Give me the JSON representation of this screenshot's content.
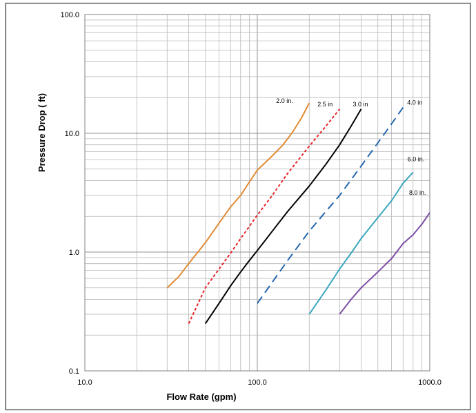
{
  "chart_data": {
    "type": "line",
    "title": "",
    "xlabel": "Flow Rate (gpm)",
    "ylabel": "Pressure Drop ( ft)",
    "xscale": "log",
    "yscale": "log",
    "xlim": [
      10,
      1000
    ],
    "ylim": [
      0.1,
      100
    ],
    "x_tick_labels": [
      "10.0",
      "100.0",
      "1000.0"
    ],
    "y_tick_labels": [
      "0.1",
      "1.0",
      "10.0",
      "100.0"
    ],
    "grid": true,
    "series": [
      {
        "name": "2.0 in.",
        "color": "#E08A34",
        "dash": "solid",
        "points": [
          [
            30,
            0.5
          ],
          [
            35,
            0.62
          ],
          [
            40,
            0.8
          ],
          [
            50,
            1.2
          ],
          [
            60,
            1.75
          ],
          [
            70,
            2.4
          ],
          [
            80,
            3.0
          ],
          [
            90,
            3.9
          ],
          [
            100,
            4.9
          ],
          [
            120,
            6.3
          ],
          [
            140,
            7.9
          ],
          [
            160,
            10.2
          ],
          [
            180,
            13.4
          ],
          [
            200,
            18.0
          ]
        ]
      },
      {
        "name": "2.5 in",
        "color": "#E8262A",
        "dash": "short",
        "points": [
          [
            40,
            0.25
          ],
          [
            50,
            0.5
          ],
          [
            60,
            0.72
          ],
          [
            70,
            0.98
          ],
          [
            80,
            1.3
          ],
          [
            90,
            1.65
          ],
          [
            100,
            2.05
          ],
          [
            120,
            2.9
          ],
          [
            150,
            4.6
          ],
          [
            200,
            7.8
          ],
          [
            250,
            11.5
          ],
          [
            300,
            16.0
          ]
        ]
      },
      {
        "name": "3.0 in",
        "color": "#000000",
        "dash": "solid",
        "points": [
          [
            50,
            0.25
          ],
          [
            60,
            0.37
          ],
          [
            70,
            0.52
          ],
          [
            80,
            0.68
          ],
          [
            90,
            0.85
          ],
          [
            100,
            1.03
          ],
          [
            120,
            1.45
          ],
          [
            150,
            2.2
          ],
          [
            200,
            3.6
          ],
          [
            250,
            5.5
          ],
          [
            300,
            8.0
          ],
          [
            350,
            11.5
          ],
          [
            400,
            16.0
          ]
        ]
      },
      {
        "name": "4.0 in",
        "color": "#2467AE",
        "dash": "long",
        "points": [
          [
            100,
            0.37
          ],
          [
            150,
            0.85
          ],
          [
            200,
            1.5
          ],
          [
            250,
            2.2
          ],
          [
            300,
            3.0
          ],
          [
            400,
            5.3
          ],
          [
            500,
            8.3
          ],
          [
            600,
            12.0
          ],
          [
            700,
            16.5
          ]
        ]
      },
      {
        "name": "6.0 in.",
        "color": "#3AA6BD",
        "dash": "solid",
        "points": [
          [
            200,
            0.3
          ],
          [
            250,
            0.48
          ],
          [
            300,
            0.72
          ],
          [
            350,
            0.98
          ],
          [
            400,
            1.3
          ],
          [
            500,
            1.95
          ],
          [
            600,
            2.7
          ],
          [
            700,
            3.8
          ],
          [
            800,
            4.7
          ]
        ]
      },
      {
        "name": "8.0 in.",
        "color": "#7B4EA3",
        "dash": "solid",
        "points": [
          [
            300,
            0.3
          ],
          [
            350,
            0.4
          ],
          [
            400,
            0.5
          ],
          [
            500,
            0.68
          ],
          [
            600,
            0.88
          ],
          [
            700,
            1.18
          ],
          [
            800,
            1.4
          ],
          [
            900,
            1.72
          ],
          [
            1000,
            2.15
          ]
        ]
      }
    ]
  }
}
